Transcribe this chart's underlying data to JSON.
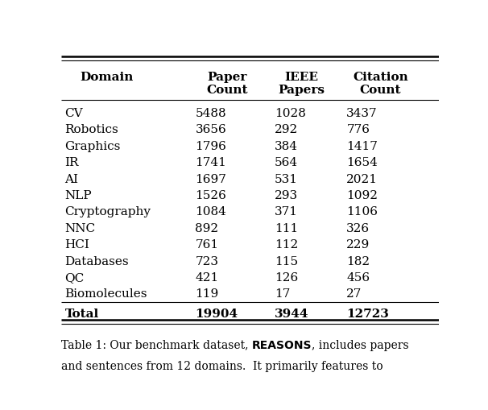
{
  "columns": [
    "Domain",
    "Paper\nCount",
    "IEEE\nPapers",
    "Citation\nCount"
  ],
  "rows": [
    [
      "CV",
      "5488",
      "1028",
      "3437"
    ],
    [
      "Robotics",
      "3656",
      "292",
      "776"
    ],
    [
      "Graphics",
      "1796",
      "384",
      "1417"
    ],
    [
      "IR",
      "1741",
      "564",
      "1654"
    ],
    [
      "AI",
      "1697",
      "531",
      "2021"
    ],
    [
      "NLP",
      "1526",
      "293",
      "1092"
    ],
    [
      "Cryptography",
      "1084",
      "371",
      "1106"
    ],
    [
      "NNC",
      "892",
      "111",
      "326"
    ],
    [
      "HCI",
      "761",
      "112",
      "229"
    ],
    [
      "Databases",
      "723",
      "115",
      "182"
    ],
    [
      "QC",
      "421",
      "126",
      "456"
    ],
    [
      "Biomolecules",
      "119",
      "17",
      "27"
    ]
  ],
  "total_row": [
    "Total",
    "19904",
    "3944",
    "12723"
  ],
  "background_color": "#ffffff",
  "text_color": "#000000",
  "font_family": "DejaVu Serif",
  "header_fontsize": 11,
  "body_fontsize": 11,
  "caption_fontsize": 10
}
